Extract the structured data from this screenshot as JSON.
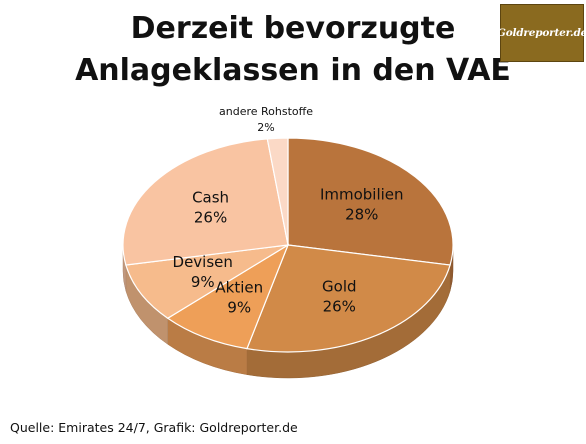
{
  "title_lines": [
    "Derzeit bevorzugte",
    "Anlageklassen in den VAE"
  ],
  "logo_text": "Goldreporter.de",
  "source_text": "Quelle: Emirates 24/7, Grafik: Goldreporter.de",
  "chart_data": {
    "type": "pie",
    "title": "Derzeit bevorzugte Anlageklassen in den VAE",
    "slices": [
      {
        "label": "Immobilien",
        "value": 28,
        "value_label": "28%",
        "color": "#b9743c"
      },
      {
        "label": "Gold",
        "value": 26,
        "value_label": "26%",
        "color": "#d18a48"
      },
      {
        "label": "Aktien",
        "value": 9,
        "value_label": "9%",
        "color": "#ee9f58"
      },
      {
        "label": "Devisen",
        "value": 9,
        "value_label": "9%",
        "color": "#f6bb8c"
      },
      {
        "label": "Cash",
        "value": 26,
        "value_label": "26%",
        "color": "#f9c4a2"
      },
      {
        "label": "andere Rohstoffe",
        "value": 2,
        "value_label": "2%",
        "color": "#fbd9c6"
      }
    ],
    "style": "3d"
  }
}
